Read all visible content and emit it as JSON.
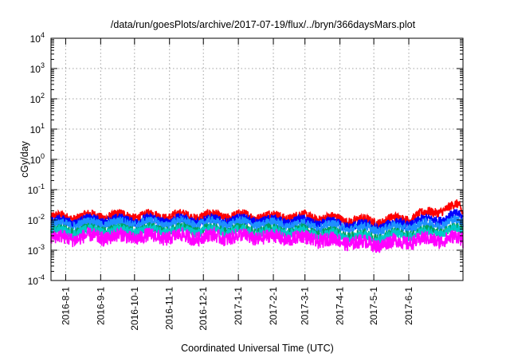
{
  "chart_data": {
    "type": "line",
    "title": "/data/run/goesPlots/archive/2017-07-19/flux/../bryn/366daysMars.plot",
    "xlabel": "Coordinated Universal Time (UTC)",
    "ylabel": "cGy/day",
    "yscale": "log",
    "ylim": [
      0.0001,
      10000
    ],
    "xlim": [
      "2016-07-19",
      "2017-07-19"
    ],
    "grid": true,
    "x_ticks": [
      "2016-8-1",
      "2016-9-1",
      "2016-10-1",
      "2016-11-1",
      "2016-12-1",
      "2017-1-1",
      "2017-2-1",
      "2017-3-1",
      "2017-4-1",
      "2017-5-1",
      "2017-6-1"
    ],
    "y_ticks": [
      {
        "base": "10",
        "exp": "-4",
        "value": 0.0001
      },
      {
        "base": "10",
        "exp": "-3",
        "value": 0.001
      },
      {
        "base": "10",
        "exp": "-2",
        "value": 0.01
      },
      {
        "base": "10",
        "exp": "-1",
        "value": 0.1
      },
      {
        "base": "10",
        "exp": "0",
        "value": 1
      },
      {
        "base": "10",
        "exp": "1",
        "value": 10
      },
      {
        "base": "10",
        "exp": "2",
        "value": 100
      },
      {
        "base": "10",
        "exp": "3",
        "value": 1000
      },
      {
        "base": "10",
        "exp": "4",
        "value": 10000
      }
    ],
    "series": [
      {
        "color": "#ff0000",
        "x": [
          "2016-07-19",
          "2016-09-01",
          "2016-11-01",
          "2017-01-01",
          "2017-03-01",
          "2017-05-01",
          "2017-06-01",
          "2017-07-15",
          "2017-07-19"
        ],
        "values": [
          0.012,
          0.014,
          0.014,
          0.014,
          0.013,
          0.009,
          0.012,
          0.03,
          0.016
        ]
      },
      {
        "color": "#0000ff",
        "x": [
          "2016-07-19",
          "2016-09-01",
          "2016-11-01",
          "2017-01-01",
          "2017-03-01",
          "2017-05-01",
          "2017-06-01",
          "2017-07-15",
          "2017-07-19"
        ],
        "values": [
          0.009,
          0.01,
          0.01,
          0.01,
          0.009,
          0.006,
          0.008,
          0.014,
          0.012
        ]
      },
      {
        "color": "#1e90ff",
        "x": [
          "2016-07-19",
          "2016-09-01",
          "2016-11-01",
          "2017-01-01",
          "2017-03-01",
          "2017-05-01",
          "2017-06-01",
          "2017-07-15",
          "2017-07-19"
        ],
        "values": [
          0.007,
          0.008,
          0.008,
          0.008,
          0.007,
          0.005,
          0.006,
          0.009,
          0.008
        ]
      },
      {
        "color": "#00a060",
        "x": [
          "2016-07-19",
          "2016-09-01",
          "2016-11-01",
          "2017-01-01",
          "2017-03-01",
          "2017-05-01",
          "2017-06-01",
          "2017-07-15",
          "2017-07-19"
        ],
        "values": [
          0.0045,
          0.005,
          0.005,
          0.005,
          0.0045,
          0.0028,
          0.0038,
          0.005,
          0.004
        ]
      },
      {
        "color": "#00c8c8",
        "x": [
          "2016-07-19",
          "2016-09-01",
          "2016-11-01",
          "2017-01-01",
          "2017-03-01",
          "2017-05-01",
          "2017-06-01",
          "2017-07-15",
          "2017-07-19"
        ],
        "values": [
          0.004,
          0.0045,
          0.0045,
          0.0045,
          0.004,
          0.0025,
          0.0033,
          0.0045,
          0.0035
        ]
      },
      {
        "color": "#ff00ff",
        "x": [
          "2016-07-19",
          "2016-09-01",
          "2016-11-01",
          "2017-01-01",
          "2017-03-01",
          "2017-05-01",
          "2017-06-01",
          "2017-07-15",
          "2017-07-19"
        ],
        "values": [
          0.0025,
          0.0028,
          0.0028,
          0.0028,
          0.0025,
          0.0016,
          0.002,
          0.0025,
          0.002
        ]
      }
    ]
  }
}
